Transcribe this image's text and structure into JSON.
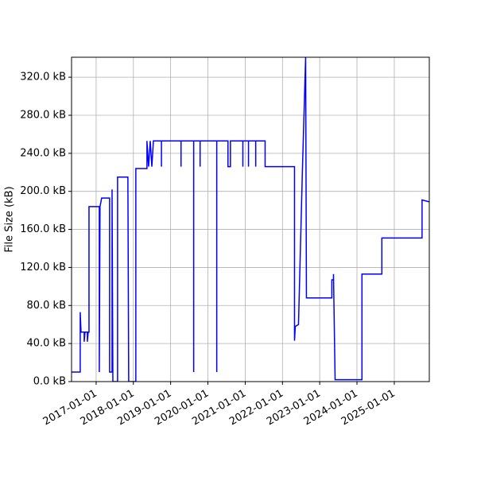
{
  "chart_data": {
    "type": "line",
    "y_label": "File Size (kB)",
    "x": [
      "2016-05-05",
      "2016-07-29",
      "2016-07-29",
      "2016-08-06",
      "2016-09-06",
      "2016-09-06",
      "2016-09-14",
      "2016-10-07",
      "2016-10-07",
      "2016-10-15",
      "2016-10-23",
      "2016-10-23",
      "2017-02-01",
      "2017-02-01",
      "2017-02-08",
      "2017-02-24",
      "2017-05-13",
      "2017-05-13",
      "2017-06-06",
      "2017-06-06",
      "2017-06-14",
      "2017-07-30",
      "2017-07-30",
      "2017-11-08",
      "2017-11-16",
      "2018-01-25",
      "2018-01-25",
      "2018-05-14",
      "2018-05-14",
      "2018-05-30",
      "2018-06-15",
      "2018-07-01",
      "2018-07-16",
      "2018-10-03",
      "2018-10-03",
      "2018-10-03",
      "2019-04-13",
      "2019-04-13",
      "2019-04-13",
      "2019-08-15",
      "2019-08-15",
      "2019-08-15",
      "2019-10-17",
      "2019-10-17",
      "2019-10-17",
      "2020-03-28",
      "2020-03-28",
      "2020-03-28",
      "2020-07-16",
      "2020-07-16",
      "2020-08-09",
      "2020-08-09",
      "2020-12-09",
      "2020-12-09",
      "2020-12-09",
      "2021-02-02",
      "2021-02-02",
      "2021-02-02",
      "2021-04-14",
      "2021-04-14",
      "2021-04-14",
      "2021-07-15",
      "2021-07-15",
      "2022-04-29",
      "2022-04-29",
      "2022-05-07",
      "2022-06-07",
      "2022-07-15",
      "2022-08-16",
      "2022-08-24",
      "2023-04-30",
      "2023-04-30",
      "2023-05-16",
      "2023-05-16",
      "2023-06-01",
      "2024-02-19",
      "2024-02-19",
      "2024-09-01",
      "2024-09-01",
      "2025-09-30",
      "2025-09-30",
      "2025-12-10"
    ],
    "series": [
      {
        "color": "#0000ff",
        "values": [
          10,
          10,
          73,
          52,
          52,
          42,
          52,
          52,
          42,
          52,
          52,
          184,
          184,
          10,
          184,
          193,
          193,
          10,
          10,
          202,
          0,
          0,
          215,
          215,
          0,
          0,
          224,
          224,
          253,
          226,
          253,
          226,
          253,
          253,
          226,
          253,
          253,
          226,
          253,
          253,
          10,
          253,
          253,
          226,
          253,
          253,
          10,
          253,
          253,
          226,
          226,
          253,
          253,
          226,
          253,
          253,
          226,
          253,
          253,
          226,
          253,
          253,
          226,
          226,
          43,
          58,
          60,
          220,
          341,
          88,
          88,
          107,
          107,
          113,
          2,
          2,
          113,
          113,
          151,
          151,
          191,
          189
        ]
      }
    ],
    "xlim": [
      "2016-05-05",
      "2025-12-10"
    ],
    "xticks": [
      "2017-01-01",
      "2018-01-01",
      "2019-01-01",
      "2020-01-01",
      "2021-01-01",
      "2022-01-01",
      "2023-01-01",
      "2024-01-01",
      "2025-01-01"
    ],
    "ylim": [
      0,
      341
    ],
    "yticks": [
      {
        "value": 0,
        "label": "0.0 kB"
      },
      {
        "value": 40,
        "label": "40.0 kB"
      },
      {
        "value": 80,
        "label": "80.0 kB"
      },
      {
        "value": 120,
        "label": "120.0 kB"
      },
      {
        "value": 160,
        "label": "160.0 kB"
      },
      {
        "value": 200,
        "label": "200.0 kB"
      },
      {
        "value": 240,
        "label": "240.0 kB"
      },
      {
        "value": 280,
        "label": "280.0 kB"
      },
      {
        "value": 320,
        "label": "320.0 kB"
      }
    ],
    "grid": true
  }
}
